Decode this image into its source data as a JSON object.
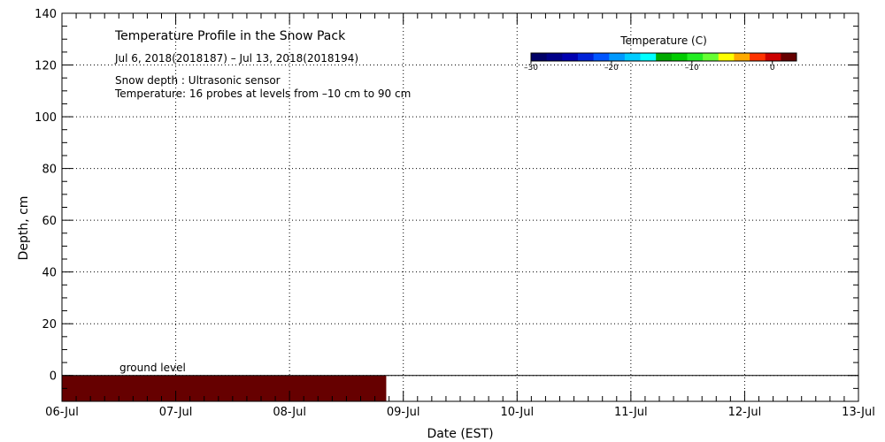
{
  "chart_data": {
    "type": "heatmap",
    "title": "Temperature Profile in the Snow Pack",
    "subtitle": "Jul  6, 2018(2018187) – Jul 13, 2018(2018194)",
    "notes": [
      "Snow depth : Ultrasonic sensor",
      "Temperature: 16 probes at levels from –10 cm to 90 cm"
    ],
    "xlabel": "Date (EST)",
    "ylabel": "Depth, cm",
    "x_categories": [
      "06-Jul",
      "07-Jul",
      "08-Jul",
      "09-Jul",
      "10-Jul",
      "11-Jul",
      "12-Jul",
      "13-Jul"
    ],
    "xlim_days": [
      0,
      7
    ],
    "ylim": [
      -10,
      140
    ],
    "y_ticks": [
      0,
      20,
      40,
      60,
      80,
      100,
      120,
      140
    ],
    "y_tick_labels": [
      "0",
      "20",
      "40",
      "60",
      "80",
      "100",
      "120",
      "140"
    ],
    "grid": true,
    "ground_level": {
      "label": "ground level",
      "depth": 0
    },
    "series": [
      {
        "temperature_c": 2,
        "x_start_day": 0,
        "x_end_day": 2.85,
        "depth_from": -10,
        "depth_to": 0,
        "color": "#660000"
      }
    ],
    "colorbar": {
      "title": "Temperature (C)",
      "range": [
        -30,
        3
      ],
      "tick_values": [
        -30,
        -20,
        -10,
        0
      ],
      "tick_labels": [
        "–30",
        "–20",
        "–10",
        "0"
      ],
      "colors": [
        "#000066",
        "#000088",
        "#0000b0",
        "#0022d8",
        "#0055ff",
        "#0099ff",
        "#00ccff",
        "#00ffff",
        "#00aa00",
        "#00cc00",
        "#22ee22",
        "#66ff33",
        "#ffff00",
        "#ffaa00",
        "#ff3300",
        "#cc0000",
        "#660000"
      ]
    }
  }
}
